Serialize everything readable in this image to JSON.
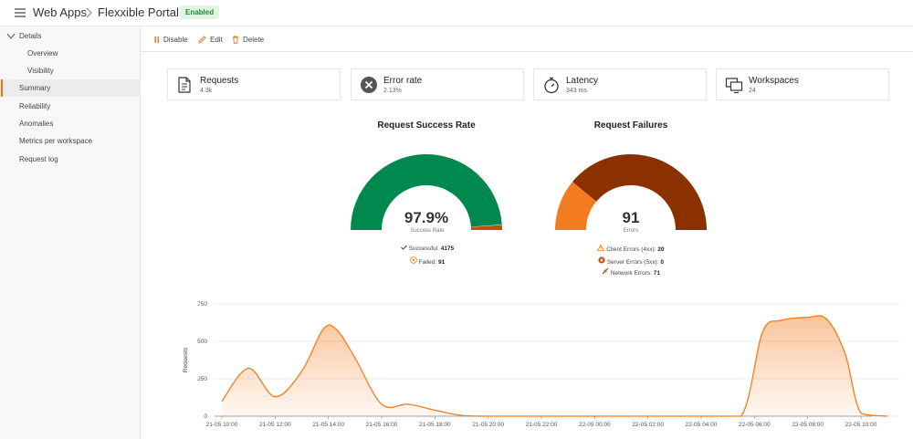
{
  "header": {
    "crumb_root": "Web Apps",
    "crumb_current": "Flexxible Portal",
    "status_badge": "Enabled"
  },
  "sidebar": {
    "items": [
      {
        "label": "Details",
        "level": 0,
        "expanded": true,
        "active": false
      },
      {
        "label": "Overview",
        "level": 1,
        "active": false
      },
      {
        "label": "Visibility",
        "level": 1,
        "active": false
      },
      {
        "label": "Summary",
        "level": 0,
        "active": true
      },
      {
        "label": "Reliability",
        "level": 0,
        "active": false
      },
      {
        "label": "Anomalies",
        "level": 0,
        "active": false
      },
      {
        "label": "Metrics per workspace",
        "level": 0,
        "active": false
      },
      {
        "label": "Request log",
        "level": 0,
        "active": false
      }
    ]
  },
  "toolbar": {
    "disable_label": "Disable",
    "edit_label": "Edit",
    "delete_label": "Delete"
  },
  "cards": [
    {
      "title": "Requests",
      "value": "4.3k",
      "icon": "document-icon"
    },
    {
      "title": "Error rate",
      "value": "2.13%",
      "icon": "error-icon"
    },
    {
      "title": "Latency",
      "value": "343 ms",
      "icon": "stopwatch-icon"
    },
    {
      "title": "Workspaces",
      "value": "24",
      "icon": "monitors-icon"
    }
  ],
  "success_gauge": {
    "title": "Request Success Rate",
    "value_text": "97.9%",
    "caption": "Success Rate",
    "success_fraction": 0.979,
    "successful_label": "Successful:",
    "successful_value": "4175",
    "failed_label": "Failed:",
    "failed_value": "91",
    "colors": {
      "success": "#00894f",
      "failed": "#c0500b"
    }
  },
  "failure_gauge": {
    "title": "Request Failures",
    "value_text": "91",
    "caption": "Errors",
    "client_label": "Client Errors (4xx):",
    "client_value": "20",
    "server_label": "Server Errors (5xx):",
    "server_value": "0",
    "network_label": "Network Errors:",
    "network_value": "71",
    "counts": {
      "client": 20,
      "server": 0,
      "network": 71
    },
    "colors": {
      "client": "#f47c20",
      "server": "#c0500b",
      "network": "#8b3100"
    }
  },
  "chart_data": {
    "type": "area",
    "ylabel": "Requests",
    "ylim": [
      0,
      750
    ],
    "yticks": [
      0,
      250,
      500,
      750
    ],
    "xlabels": [
      "21-05 10:00",
      "21-05 12:00",
      "21-05 14:00",
      "21-05 16:00",
      "21-05 18:00",
      "21-05 20:00",
      "21-05 22:00",
      "22-05 00:00",
      "22-05 02:00",
      "22-05 04:00",
      "22-05 06:00",
      "22-05 08:00",
      "22-05 10:00"
    ],
    "x_hours": [
      0,
      2,
      4,
      6,
      8,
      10,
      12,
      14,
      16,
      18,
      20,
      22,
      24
    ],
    "series": [
      {
        "color": "#f47c20",
        "points": [
          [
            0,
            100
          ],
          [
            1,
            320
          ],
          [
            2,
            130
          ],
          [
            3,
            300
          ],
          [
            3.8,
            580
          ],
          [
            4.3,
            580
          ],
          [
            5,
            390
          ],
          [
            6,
            80
          ],
          [
            7,
            80
          ],
          [
            8,
            40
          ],
          [
            9,
            5
          ],
          [
            10,
            0
          ],
          [
            12,
            0
          ],
          [
            14,
            0
          ],
          [
            16,
            0
          ],
          [
            18,
            0
          ],
          [
            19.5,
            0
          ],
          [
            20.3,
            560
          ],
          [
            21,
            640
          ],
          [
            22,
            660
          ],
          [
            22.7,
            650
          ],
          [
            23.4,
            420
          ],
          [
            24,
            20
          ],
          [
            25,
            0
          ]
        ]
      }
    ]
  }
}
